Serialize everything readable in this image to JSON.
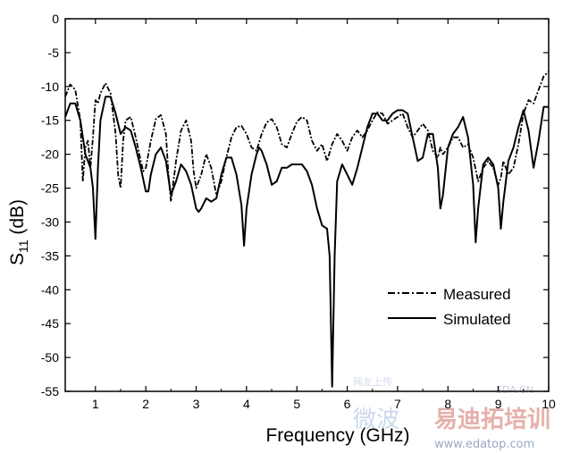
{
  "chart_data": {
    "type": "line",
    "title": "",
    "xlabel": "Frequency (GHz)",
    "ylabel_main": "S",
    "ylabel_sub": "11",
    "ylabel_unit": " (dB)",
    "xlim": [
      0.4,
      10
    ],
    "ylim": [
      -55,
      0
    ],
    "x_ticks": [
      1,
      2,
      3,
      4,
      5,
      6,
      7,
      8,
      9,
      10
    ],
    "y_ticks": [
      0,
      -5,
      -10,
      -15,
      -20,
      -25,
      -30,
      -35,
      -40,
      -45,
      -50,
      -55
    ],
    "grid": false,
    "legend_position": "lower-right",
    "series": [
      {
        "name": "Measured",
        "style": "dash-dot",
        "color": "#000000",
        "points": [
          [
            0.4,
            -11.5
          ],
          [
            0.5,
            -9.7
          ],
          [
            0.6,
            -10.5
          ],
          [
            0.7,
            -15
          ],
          [
            0.75,
            -24
          ],
          [
            0.8,
            -19
          ],
          [
            0.85,
            -18
          ],
          [
            0.9,
            -22
          ],
          [
            0.95,
            -17.5
          ],
          [
            1.0,
            -12
          ],
          [
            1.05,
            -12.5
          ],
          [
            1.1,
            -11
          ],
          [
            1.2,
            -9.5
          ],
          [
            1.3,
            -11
          ],
          [
            1.4,
            -17
          ],
          [
            1.45,
            -23
          ],
          [
            1.5,
            -25
          ],
          [
            1.55,
            -18
          ],
          [
            1.6,
            -15
          ],
          [
            1.7,
            -14.5
          ],
          [
            1.8,
            -17.5
          ],
          [
            1.9,
            -21
          ],
          [
            1.95,
            -22.5
          ],
          [
            2.0,
            -22
          ],
          [
            2.1,
            -18
          ],
          [
            2.2,
            -14.8
          ],
          [
            2.3,
            -14.2
          ],
          [
            2.4,
            -17
          ],
          [
            2.45,
            -23
          ],
          [
            2.5,
            -27
          ],
          [
            2.6,
            -21
          ],
          [
            2.7,
            -16.5
          ],
          [
            2.8,
            -15
          ],
          [
            2.9,
            -18
          ],
          [
            2.95,
            -22.5
          ],
          [
            3.0,
            -25
          ],
          [
            3.1,
            -23
          ],
          [
            3.2,
            -20
          ],
          [
            3.3,
            -22
          ],
          [
            3.4,
            -26
          ],
          [
            3.5,
            -24
          ],
          [
            3.6,
            -20.5
          ],
          [
            3.7,
            -17.5
          ],
          [
            3.8,
            -16
          ],
          [
            3.9,
            -15.8
          ],
          [
            4.0,
            -17
          ],
          [
            4.1,
            -19
          ],
          [
            4.2,
            -19.5
          ],
          [
            4.3,
            -17
          ],
          [
            4.4,
            -15.3
          ],
          [
            4.5,
            -14.8
          ],
          [
            4.6,
            -16
          ],
          [
            4.7,
            -18.5
          ],
          [
            4.8,
            -19
          ],
          [
            4.9,
            -17
          ],
          [
            5.0,
            -15.2
          ],
          [
            5.1,
            -14.5
          ],
          [
            5.2,
            -15
          ],
          [
            5.3,
            -18
          ],
          [
            5.4,
            -19.5
          ],
          [
            5.5,
            -18.5
          ],
          [
            5.6,
            -21
          ],
          [
            5.7,
            -18.5
          ],
          [
            5.8,
            -17
          ],
          [
            5.9,
            -18
          ],
          [
            6.0,
            -19.5
          ],
          [
            6.1,
            -17.5
          ],
          [
            6.2,
            -16.5
          ],
          [
            6.3,
            -17.5
          ],
          [
            6.4,
            -16.5
          ],
          [
            6.5,
            -15
          ],
          [
            6.6,
            -13.8
          ],
          [
            6.7,
            -14
          ],
          [
            6.8,
            -15.5
          ],
          [
            6.9,
            -15
          ],
          [
            7.0,
            -14.5
          ],
          [
            7.1,
            -14
          ],
          [
            7.2,
            -16
          ],
          [
            7.3,
            -17.5
          ],
          [
            7.4,
            -16.5
          ],
          [
            7.5,
            -15.5
          ],
          [
            7.6,
            -16.5
          ],
          [
            7.7,
            -19.5
          ],
          [
            7.8,
            -20.5
          ],
          [
            7.85,
            -19
          ],
          [
            7.9,
            -20
          ],
          [
            8.0,
            -19
          ],
          [
            8.1,
            -17.5
          ],
          [
            8.2,
            -17.5
          ],
          [
            8.3,
            -19
          ],
          [
            8.4,
            -18.5
          ],
          [
            8.5,
            -20.5
          ],
          [
            8.6,
            -24
          ],
          [
            8.7,
            -22
          ],
          [
            8.8,
            -21
          ],
          [
            8.9,
            -22
          ],
          [
            9.0,
            -24.5
          ],
          [
            9.05,
            -23.5
          ],
          [
            9.1,
            -21
          ],
          [
            9.2,
            -23
          ],
          [
            9.3,
            -22
          ],
          [
            9.4,
            -18.5
          ],
          [
            9.5,
            -14
          ],
          [
            9.6,
            -12
          ],
          [
            9.7,
            -12.5
          ],
          [
            9.8,
            -10.5
          ],
          [
            9.9,
            -8.5
          ],
          [
            10.0,
            -7.8
          ]
        ]
      },
      {
        "name": "Simulated",
        "style": "solid",
        "color": "#000000",
        "points": [
          [
            0.4,
            -14.5
          ],
          [
            0.5,
            -12.5
          ],
          [
            0.6,
            -12.5
          ],
          [
            0.7,
            -15
          ],
          [
            0.8,
            -20
          ],
          [
            0.9,
            -22
          ],
          [
            0.95,
            -25
          ],
          [
            1.0,
            -32.5
          ],
          [
            1.05,
            -22
          ],
          [
            1.1,
            -15
          ],
          [
            1.2,
            -11.5
          ],
          [
            1.3,
            -11.5
          ],
          [
            1.4,
            -14
          ],
          [
            1.5,
            -17
          ],
          [
            1.6,
            -16
          ],
          [
            1.7,
            -16.5
          ],
          [
            1.8,
            -19
          ],
          [
            1.9,
            -22
          ],
          [
            2.0,
            -25.5
          ],
          [
            2.05,
            -25.5
          ],
          [
            2.1,
            -23
          ],
          [
            2.2,
            -20
          ],
          [
            2.3,
            -19
          ],
          [
            2.4,
            -21
          ],
          [
            2.5,
            -26
          ],
          [
            2.6,
            -24
          ],
          [
            2.7,
            -21.5
          ],
          [
            2.8,
            -22.5
          ],
          [
            2.9,
            -24.5
          ],
          [
            3.0,
            -28
          ],
          [
            3.05,
            -28.5
          ],
          [
            3.1,
            -28
          ],
          [
            3.2,
            -26.5
          ],
          [
            3.3,
            -27
          ],
          [
            3.4,
            -26.5
          ],
          [
            3.5,
            -23
          ],
          [
            3.6,
            -20.5
          ],
          [
            3.7,
            -20.5
          ],
          [
            3.8,
            -23
          ],
          [
            3.9,
            -27.5
          ],
          [
            3.95,
            -33.5
          ],
          [
            4.0,
            -28
          ],
          [
            4.1,
            -23
          ],
          [
            4.2,
            -20
          ],
          [
            4.25,
            -19
          ],
          [
            4.3,
            -19.5
          ],
          [
            4.4,
            -21.5
          ],
          [
            4.5,
            -24.5
          ],
          [
            4.6,
            -24
          ],
          [
            4.7,
            -22
          ],
          [
            4.8,
            -22
          ],
          [
            4.9,
            -21.5
          ],
          [
            5.0,
            -21.5
          ],
          [
            5.1,
            -21.5
          ],
          [
            5.2,
            -22.5
          ],
          [
            5.3,
            -24.5
          ],
          [
            5.4,
            -28
          ],
          [
            5.5,
            -30.5
          ],
          [
            5.6,
            -31
          ],
          [
            5.65,
            -35
          ],
          [
            5.7,
            -54.3
          ],
          [
            5.75,
            -35
          ],
          [
            5.8,
            -24
          ],
          [
            5.9,
            -21.5
          ],
          [
            6.0,
            -23
          ],
          [
            6.1,
            -24.5
          ],
          [
            6.2,
            -22
          ],
          [
            6.3,
            -19
          ],
          [
            6.4,
            -16
          ],
          [
            6.5,
            -14
          ],
          [
            6.6,
            -14
          ],
          [
            6.7,
            -15
          ],
          [
            6.8,
            -15
          ],
          [
            6.9,
            -14
          ],
          [
            7.0,
            -13.5
          ],
          [
            7.1,
            -13.5
          ],
          [
            7.2,
            -14
          ],
          [
            7.3,
            -17.5
          ],
          [
            7.4,
            -21
          ],
          [
            7.5,
            -20.5
          ],
          [
            7.6,
            -17
          ],
          [
            7.7,
            -17
          ],
          [
            7.8,
            -22
          ],
          [
            7.85,
            -28
          ],
          [
            7.9,
            -26
          ],
          [
            8.0,
            -19
          ],
          [
            8.1,
            -17
          ],
          [
            8.2,
            -16
          ],
          [
            8.3,
            -14.5
          ],
          [
            8.4,
            -17.5
          ],
          [
            8.5,
            -24.5
          ],
          [
            8.55,
            -33
          ],
          [
            8.6,
            -28
          ],
          [
            8.7,
            -21.5
          ],
          [
            8.8,
            -20.5
          ],
          [
            8.9,
            -21.5
          ],
          [
            9.0,
            -25
          ],
          [
            9.05,
            -31
          ],
          [
            9.1,
            -27
          ],
          [
            9.2,
            -21
          ],
          [
            9.3,
            -19
          ],
          [
            9.4,
            -16
          ],
          [
            9.5,
            -13.5
          ],
          [
            9.6,
            -16.5
          ],
          [
            9.7,
            -22
          ],
          [
            9.8,
            -18
          ],
          [
            9.9,
            -13
          ],
          [
            10.0,
            -13
          ]
        ]
      }
    ]
  },
  "watermark": {
    "small_text": "EDA.CN",
    "left_text": "网友上传",
    "big_text_left": "微波",
    "big_text_right": "易迪拓培训",
    "url": "www.edatop.com"
  }
}
